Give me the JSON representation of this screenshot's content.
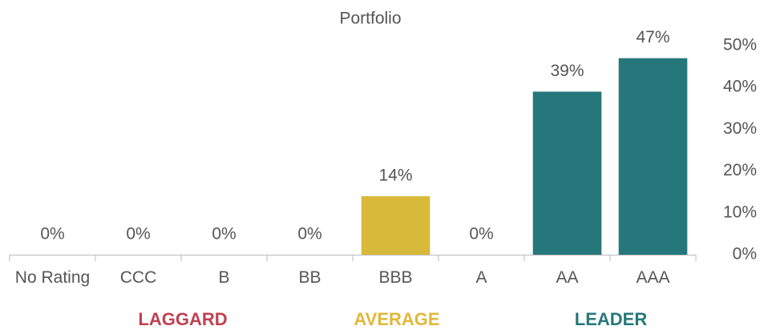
{
  "chart_data": {
    "type": "bar",
    "title": "Portfolio",
    "categories": [
      "No Rating",
      "CCC",
      "B",
      "BB",
      "BBB",
      "A",
      "AA",
      "AAA"
    ],
    "values": [
      0,
      0,
      0,
      0,
      14,
      0,
      39,
      47
    ],
    "value_labels": [
      "0%",
      "0%",
      "0%",
      "0%",
      "14%",
      "0%",
      "39%",
      "47%"
    ],
    "colors": [
      "#26777b",
      "#26777b",
      "#26777b",
      "#26777b",
      "#d9b93a",
      "#26777b",
      "#26777b",
      "#26777b"
    ],
    "ylim": [
      0,
      50
    ],
    "yticks": [
      {
        "value": 0,
        "label": "0%"
      },
      {
        "value": 10,
        "label": "10%"
      },
      {
        "value": 20,
        "label": "20%"
      },
      {
        "value": 30,
        "label": "30%"
      },
      {
        "value": 40,
        "label": "40%"
      },
      {
        "value": 50,
        "label": "50%"
      }
    ],
    "grid": false,
    "groups": [
      {
        "label": "LAGGARD",
        "color": "#c0404f"
      },
      {
        "label": "AVERAGE",
        "color": "#e0b83a"
      },
      {
        "label": "LEADER",
        "color": "#26787a"
      }
    ]
  }
}
